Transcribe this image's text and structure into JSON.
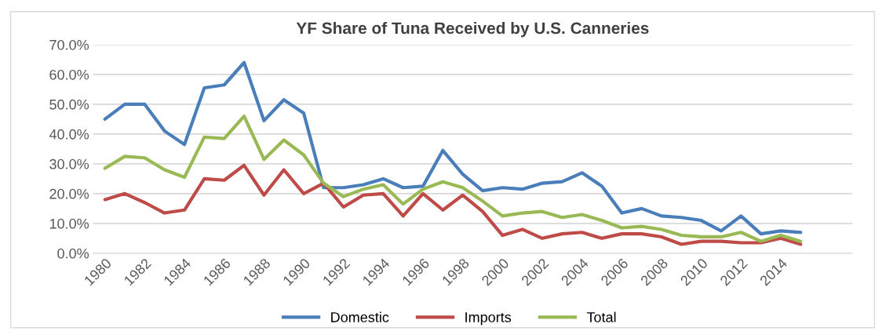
{
  "chart_data": {
    "type": "line",
    "title": "YF Share of Tuna Received by U.S. Canneries",
    "categories": [
      "1980",
      null,
      "1982",
      null,
      "1984",
      null,
      "1986",
      null,
      "1988",
      null,
      "1990",
      null,
      "1992",
      null,
      "1994",
      null,
      "1996",
      null,
      "1998",
      null,
      "2000",
      null,
      "2002",
      null,
      "2004",
      null,
      "2006",
      null,
      "2008",
      null,
      "2010",
      null,
      "2012",
      null,
      "2014",
      null
    ],
    "series": [
      {
        "name": "Domestic",
        "color": "#4a7ebb",
        "values": [
          45,
          50,
          50,
          41,
          36.5,
          55.5,
          56.5,
          64,
          44.5,
          51.5,
          47,
          22,
          22,
          23,
          25,
          22,
          22.5,
          34.5,
          26.5,
          21,
          22,
          21.5,
          23.5,
          24,
          27,
          22.5,
          13.5,
          15,
          12.5,
          12,
          11,
          7.5,
          12.5,
          6.5,
          7.5,
          7
        ]
      },
      {
        "name": "Imports",
        "color": "#be4b48",
        "values": [
          18,
          20,
          17,
          13.5,
          14.5,
          25,
          24.5,
          29.5,
          19.5,
          28,
          20,
          23.5,
          15.5,
          19.5,
          20,
          12.5,
          20,
          14.5,
          19.5,
          14,
          6,
          8,
          5,
          6.5,
          7,
          5,
          6.5,
          6.5,
          5.5,
          3,
          4,
          4,
          3.5,
          3.5,
          5,
          3
        ]
      },
      {
        "name": "Total",
        "color": "#98b954",
        "values": [
          28.5,
          32.5,
          32,
          28,
          25.5,
          39,
          38.5,
          46,
          31.5,
          38,
          33,
          23.5,
          19,
          21.5,
          23,
          16.5,
          21.5,
          24,
          22,
          17.5,
          12.5,
          13.5,
          14,
          12,
          13,
          11,
          8.5,
          9,
          8,
          6,
          5.5,
          5.5,
          7,
          4,
          6,
          4
        ]
      }
    ],
    "ylim": [
      0,
      70
    ],
    "yticks": [
      {
        "value": 0,
        "label": "0.0%"
      },
      {
        "value": 10,
        "label": "10.0%"
      },
      {
        "value": 20,
        "label": "20.0%"
      },
      {
        "value": 30,
        "label": "30.0%"
      },
      {
        "value": 40,
        "label": "40.0%"
      },
      {
        "value": 50,
        "label": "50.0%"
      },
      {
        "value": 60,
        "label": "60.0%"
      },
      {
        "value": 70,
        "label": "70.0%"
      }
    ],
    "grid": "y",
    "legend": "bottom",
    "marker": "none",
    "line_style": "solid"
  }
}
